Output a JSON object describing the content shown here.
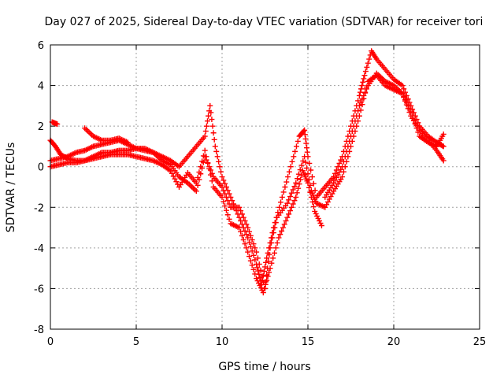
{
  "chart_data": {
    "type": "scatter",
    "title": "Day 027 of 2025, Sidereal Day-to-day VTEC variation (SDTVAR) for receiver tori",
    "xlabel": "GPS time / hours",
    "ylabel": "SDTVAR / TECUs",
    "xlim": [
      0,
      25
    ],
    "ylim": [
      -8,
      6
    ],
    "xticks": [
      0,
      5,
      10,
      15,
      20,
      25
    ],
    "yticks": [
      -8,
      -6,
      -4,
      -2,
      0,
      2,
      4,
      6
    ],
    "grid": true,
    "marker": "+",
    "color": "#ff0000",
    "series": [
      {
        "name": "satellite tracks",
        "tracks": [
          [
            [
              0.0,
              0.3
            ],
            [
              0.5,
              0.4
            ],
            [
              1.0,
              0.5
            ],
            [
              1.5,
              0.7
            ],
            [
              2.0,
              0.8
            ],
            [
              2.5,
              1.0
            ],
            [
              3.0,
              1.1
            ],
            [
              3.5,
              1.2
            ],
            [
              4.0,
              1.3
            ],
            [
              4.5,
              1.1
            ],
            [
              5.0,
              0.9
            ],
            [
              5.5,
              0.8
            ],
            [
              6.0,
              0.7
            ],
            [
              6.5,
              0.5
            ],
            [
              7.0,
              0.3
            ],
            [
              7.5,
              0.0
            ],
            [
              8.0,
              0.5
            ],
            [
              8.5,
              1.0
            ],
            [
              9.0,
              1.5
            ],
            [
              9.3,
              3.0
            ],
            [
              9.6,
              1.0
            ],
            [
              10.0,
              -0.5
            ],
            [
              10.5,
              -1.5
            ],
            [
              11.0,
              -2.5
            ],
            [
              11.5,
              -3.5
            ],
            [
              12.0,
              -4.8
            ],
            [
              12.3,
              -5.8
            ],
            [
              12.6,
              -4.5
            ],
            [
              13.0,
              -3.0
            ],
            [
              13.5,
              -1.5
            ],
            [
              14.0,
              0.0
            ],
            [
              14.5,
              1.5
            ],
            [
              14.8,
              1.8
            ],
            [
              15.0,
              0.5
            ],
            [
              15.5,
              -1.5
            ],
            [
              16.0,
              -1.0
            ],
            [
              16.5,
              -0.5
            ],
            [
              17.0,
              0.5
            ],
            [
              17.5,
              2.0
            ],
            [
              18.0,
              3.5
            ],
            [
              18.3,
              4.5
            ],
            [
              18.7,
              5.7
            ],
            [
              19.0,
              5.3
            ],
            [
              19.5,
              4.8
            ],
            [
              20.0,
              4.3
            ],
            [
              20.5,
              4.0
            ],
            [
              21.0,
              3.0
            ],
            [
              21.5,
              2.0
            ],
            [
              22.0,
              1.5
            ],
            [
              22.5,
              1.2
            ],
            [
              22.9,
              1.0
            ]
          ],
          [
            [
              0.0,
              1.3
            ],
            [
              0.3,
              1.0
            ],
            [
              0.6,
              0.6
            ],
            [
              1.0,
              0.4
            ],
            [
              1.5,
              0.3
            ],
            [
              2.0,
              0.3
            ],
            [
              2.5,
              0.5
            ],
            [
              3.0,
              0.7
            ],
            [
              3.5,
              0.7
            ],
            [
              4.0,
              0.8
            ],
            [
              4.5,
              0.8
            ],
            [
              5.0,
              0.9
            ],
            [
              5.5,
              0.9
            ],
            [
              6.0,
              0.7
            ],
            [
              6.5,
              0.3
            ],
            [
              7.0,
              0.1
            ],
            [
              7.5,
              -0.5
            ],
            [
              8.0,
              -0.8
            ],
            [
              8.5,
              -1.2
            ],
            [
              9.0,
              0.5
            ],
            [
              9.5,
              -0.5
            ],
            [
              10.0,
              -1.0
            ],
            [
              10.5,
              -2.0
            ],
            [
              11.0,
              -2.0
            ],
            [
              11.5,
              -3.0
            ],
            [
              12.0,
              -4.2
            ],
            [
              12.5,
              -6.0
            ],
            [
              12.8,
              -4.0
            ],
            [
              13.2,
              -2.5
            ],
            [
              13.8,
              -1.8
            ],
            [
              14.3,
              -0.8
            ],
            [
              14.8,
              0.5
            ],
            [
              15.2,
              -1.2
            ],
            [
              15.5,
              -1.8
            ],
            [
              16.0,
              -2.0
            ],
            [
              16.5,
              -1.2
            ],
            [
              17.0,
              -0.5
            ],
            [
              17.5,
              1.0
            ],
            [
              18.0,
              2.5
            ],
            [
              18.5,
              4.2
            ],
            [
              19.0,
              4.5
            ],
            [
              19.5,
              4.0
            ],
            [
              20.0,
              3.8
            ],
            [
              20.5,
              3.6
            ],
            [
              21.0,
              2.5
            ],
            [
              21.5,
              1.8
            ],
            [
              22.0,
              1.3
            ],
            [
              22.5,
              0.8
            ],
            [
              22.9,
              0.3
            ]
          ],
          [
            [
              0.1,
              2.2
            ],
            [
              0.4,
              2.1
            ]
          ],
          [
            [
              0.0,
              0.0
            ],
            [
              0.5,
              0.1
            ],
            [
              1.0,
              0.2
            ],
            [
              1.5,
              0.2
            ],
            [
              2.0,
              0.3
            ],
            [
              2.5,
              0.4
            ],
            [
              3.0,
              0.5
            ],
            [
              3.5,
              0.6
            ],
            [
              4.0,
              0.6
            ],
            [
              4.5,
              0.6
            ],
            [
              5.0,
              0.5
            ],
            [
              5.5,
              0.4
            ],
            [
              6.0,
              0.3
            ],
            [
              6.5,
              0.1
            ],
            [
              7.0,
              -0.2
            ],
            [
              7.5,
              -1.0
            ],
            [
              8.0,
              -0.3
            ],
            [
              8.5,
              -0.8
            ],
            [
              9.0,
              0.8
            ],
            [
              9.5,
              -1.0
            ],
            [
              10.0,
              -1.5
            ],
            [
              10.5,
              -2.8
            ],
            [
              11.0,
              -3.0
            ],
            [
              11.5,
              -4.2
            ],
            [
              12.0,
              -5.5
            ],
            [
              12.4,
              -6.2
            ],
            [
              12.8,
              -5.0
            ],
            [
              13.3,
              -3.5
            ],
            [
              13.8,
              -2.5
            ],
            [
              14.3,
              -1.5
            ],
            [
              14.7,
              -0.2
            ],
            [
              15.0,
              -0.8
            ],
            [
              15.4,
              -2.2
            ],
            [
              15.8,
              -2.9
            ]
          ],
          [
            [
              16.0,
              -1.5
            ],
            [
              16.5,
              -0.8
            ],
            [
              17.0,
              0.0
            ],
            [
              17.5,
              1.5
            ],
            [
              18.0,
              3.0
            ],
            [
              18.5,
              4.0
            ],
            [
              19.0,
              4.6
            ],
            [
              19.5,
              4.2
            ],
            [
              20.0,
              4.0
            ],
            [
              20.5,
              3.6
            ],
            [
              21.0,
              2.7
            ],
            [
              21.5,
              1.5
            ],
            [
              22.0,
              1.2
            ],
            [
              22.5,
              1.0
            ],
            [
              22.9,
              1.6
            ]
          ],
          [
            [
              2.0,
              1.9
            ],
            [
              2.5,
              1.5
            ],
            [
              3.0,
              1.3
            ],
            [
              3.5,
              1.3
            ],
            [
              4.0,
              1.4
            ],
            [
              4.5,
              1.2
            ]
          ]
        ]
      }
    ]
  }
}
